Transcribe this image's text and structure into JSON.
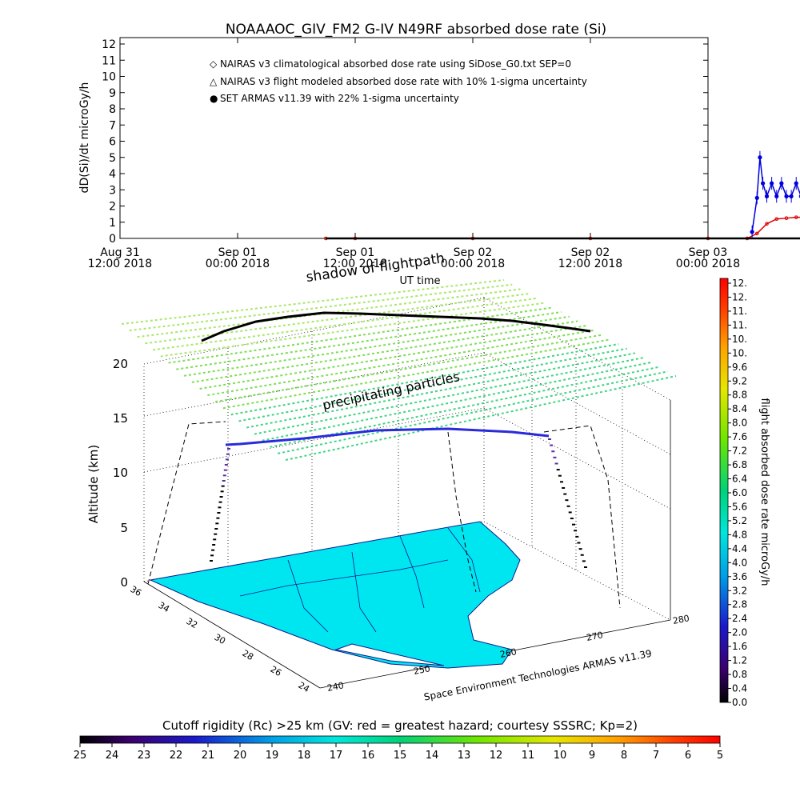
{
  "chart_data": [
    {
      "type": "line",
      "title": "NOAAAOC_GIV_FM2 G-IV    N49RF   absorbed dose rate (Si)",
      "ylabel": "dD(Si)/dt microGy/h",
      "xlabel": "",
      "ylim": [
        0,
        12
      ],
      "yticks": [
        "0",
        "1",
        "2",
        "3",
        "4",
        "5",
        "6",
        "7",
        "8",
        "9",
        "10",
        "11",
        "12"
      ],
      "xticks": [
        {
          "line1": "Aug 31",
          "line2": "12:00 2018"
        },
        {
          "line1": "Sep 01",
          "line2": "00:00 2018"
        },
        {
          "line1": "Sep 01",
          "line2": "12:00 2018"
        },
        {
          "line1": "Sep 02",
          "line2": "00:00 2018"
        },
        {
          "line1": "Sep 02",
          "line2": "12:00 2018"
        },
        {
          "line1": "Sep 03",
          "line2": "00:00 2018"
        }
      ],
      "legend": [
        {
          "marker": "◇",
          "color": "#cc0000",
          "text": "NAIRAS v3 climatological absorbed dose rate using SiDose_G0.txt SEP=0"
        },
        {
          "marker": "△",
          "color": "#000000",
          "text": "NAIRAS v3 flight modeled absorbed dose rate with 10% 1-sigma uncertainty"
        },
        {
          "marker": "●",
          "color": "#0000cc",
          "text": "SET ARMAS v11.39 with 22% 1-sigma uncertainty"
        }
      ],
      "legend_position": "top-left",
      "series": [
        {
          "name": "NAIRAS v3 climatological absorbed dose rate using SiDose_G0.txt SEP=0",
          "color": "#dd0000",
          "x_hours": [
            21,
            24,
            36,
            48,
            60,
            64,
            65,
            66,
            67,
            68,
            69,
            70,
            71,
            72,
            73,
            74,
            75,
            76,
            77
          ],
          "values": [
            0,
            0,
            0,
            0,
            0,
            0,
            0.3,
            0.9,
            1.2,
            1.25,
            1.3,
            1.3,
            1.3,
            1.3,
            1.3,
            1.25,
            1.2,
            0.8,
            0
          ]
        },
        {
          "name": "NAIRAS v3 flight modeled absorbed dose rate with 10% 1-sigma uncertainty",
          "color": "#000000",
          "x_hours": [
            21,
            36,
            48,
            60,
            64,
            70,
            76,
            77
          ],
          "values": [
            0,
            0,
            0,
            0,
            0,
            0,
            0,
            0
          ]
        },
        {
          "name": "SET ARMAS v11.39 with 22% 1-sigma uncertainty",
          "color": "#0000dd",
          "x_hours": [
            64.5,
            65,
            65.3,
            65.6,
            66,
            66.5,
            67,
            67.5,
            68,
            68.5,
            69,
            69.5,
            70,
            70.5,
            71,
            71.5,
            72,
            72.5,
            73,
            73.5,
            74,
            74.5,
            75,
            75.5,
            76
          ],
          "values": [
            0.4,
            2.5,
            5.0,
            3.4,
            2.6,
            3.4,
            2.6,
            3.4,
            2.6,
            2.6,
            3.4,
            2.6,
            2.6,
            3.4,
            3.4,
            4.2,
            2.6,
            4.2,
            3.4,
            2.6,
            4.2,
            2.6,
            3.4,
            1.5,
            0.3
          ]
        }
      ]
    },
    {
      "type": "scatter",
      "title": "shadow of flightpath",
      "xlabel": "UT time",
      "ylabel": "Altitude (km)",
      "zlim": [
        0,
        20
      ],
      "z_ticks": [
        "0",
        "5",
        "10",
        "15",
        "20"
      ],
      "lat_ticks": [
        "36",
        "34",
        "32",
        "30",
        "28",
        "26",
        "24"
      ],
      "lon_ticks": [
        "240",
        "250",
        "260",
        "270",
        "280"
      ],
      "annotations": [
        "precipitating particles",
        "Space Environment Technologies ARMAS v11.39"
      ]
    },
    {
      "type": "heatmap",
      "colorbar_label": "flight absorbed dose rate microGy/h",
      "colorbar_ticks": [
        "0.0",
        "0.4",
        "0.8",
        "1.2",
        "1.6",
        "2.0",
        "2.4",
        "2.8",
        "3.2",
        "3.6",
        "4.0",
        "4.4",
        "4.8",
        "5.2",
        "5.6",
        "6.0",
        "6.4",
        "6.8",
        "7.2",
        "7.6",
        "8.0",
        "8.4",
        "8.8",
        "9.2",
        "9.6",
        "10.",
        "10.",
        "11.",
        "11.",
        "12.",
        "12."
      ]
    },
    {
      "type": "heatmap",
      "colorbar_label": "Cutoff rigidity (Rc) >25 km (GV: red = greatest hazard; courtesy SSSRC; Kp=2)",
      "colorbar_ticks": [
        "25",
        "24",
        "23",
        "22",
        "21",
        "20",
        "19",
        "18",
        "17",
        "16",
        "15",
        "14",
        "13",
        "12",
        "11",
        "10",
        "9",
        "8",
        "7",
        "6",
        "5"
      ]
    }
  ]
}
